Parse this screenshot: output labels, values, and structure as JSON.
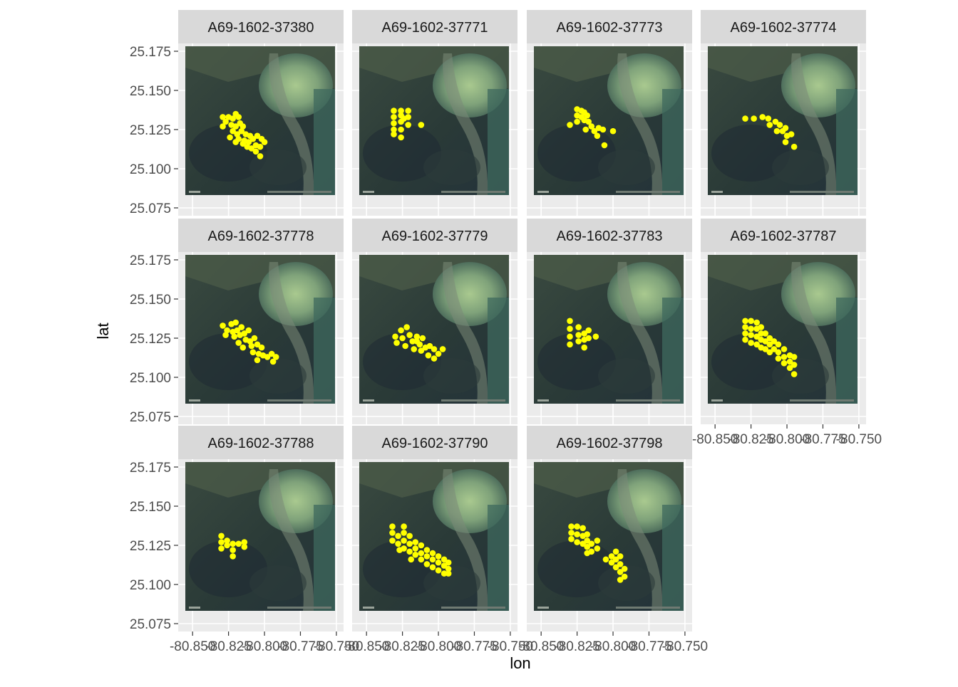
{
  "chart_data": {
    "type": "scatter",
    "subtype": "faceted-map",
    "xlabel": "lon",
    "ylabel": "lat",
    "xlim": [
      -80.86,
      -80.745
    ],
    "ylim": [
      25.07,
      25.18
    ],
    "x_ticks": [
      -80.85,
      -80.825,
      -80.8,
      -80.775,
      -80.75
    ],
    "x_tick_labels": [
      "-80.850",
      "-80.825",
      "-80.800",
      "-80.775",
      "-80.750"
    ],
    "y_ticks": [
      25.075,
      25.1,
      25.125,
      25.15,
      25.175
    ],
    "y_tick_labels": [
      "25.075",
      "25.100",
      "25.125",
      "25.150",
      "25.175"
    ],
    "point_color": "#ffff00",
    "panel_background": "#ebebeb",
    "strip_background": "#d9d9d9",
    "grid": true,
    "background_layer": "satellite imagery",
    "panels": [
      {
        "label": "A69-1602-37380",
        "points": [
          [
            -80.829,
            25.133
          ],
          [
            -80.827,
            25.13
          ],
          [
            -80.829,
            25.127
          ],
          [
            -80.825,
            25.133
          ],
          [
            -80.822,
            25.132
          ],
          [
            -80.82,
            25.135
          ],
          [
            -80.818,
            25.133
          ],
          [
            -80.823,
            25.128
          ],
          [
            -80.82,
            25.127
          ],
          [
            -80.817,
            25.129
          ],
          [
            -80.815,
            25.127
          ],
          [
            -80.822,
            25.124
          ],
          [
            -80.819,
            25.122
          ],
          [
            -80.816,
            25.124
          ],
          [
            -80.813,
            25.122
          ],
          [
            -80.81,
            25.121
          ],
          [
            -80.824,
            25.12
          ],
          [
            -80.818,
            25.119
          ],
          [
            -80.814,
            25.118
          ],
          [
            -80.811,
            25.117
          ],
          [
            -80.808,
            25.119
          ],
          [
            -80.805,
            25.121
          ],
          [
            -80.802,
            25.119
          ],
          [
            -80.812,
            25.114
          ],
          [
            -80.809,
            25.113
          ],
          [
            -80.806,
            25.115
          ],
          [
            -80.803,
            25.114
          ],
          [
            -80.8,
            25.117
          ],
          [
            -80.806,
            25.111
          ],
          [
            -80.803,
            25.108
          ],
          [
            -80.815,
            25.116
          ],
          [
            -80.82,
            25.117
          ]
        ]
      },
      {
        "label": "A69-1602-37771",
        "points": [
          [
            -80.831,
            25.137
          ],
          [
            -80.831,
            25.133
          ],
          [
            -80.831,
            25.129
          ],
          [
            -80.831,
            25.125
          ],
          [
            -80.831,
            25.122
          ],
          [
            -80.826,
            25.137
          ],
          [
            -80.826,
            25.134
          ],
          [
            -80.826,
            25.13
          ],
          [
            -80.826,
            25.125
          ],
          [
            -80.826,
            25.12
          ],
          [
            -80.821,
            25.137
          ],
          [
            -80.821,
            25.133
          ],
          [
            -80.821,
            25.128
          ],
          [
            -80.812,
            25.128
          ],
          [
            -80.824,
            25.132
          ]
        ]
      },
      {
        "label": "A69-1602-37773",
        "points": [
          [
            -80.83,
            25.128
          ],
          [
            -80.825,
            25.138
          ],
          [
            -80.825,
            25.134
          ],
          [
            -80.825,
            25.13
          ],
          [
            -80.822,
            25.137
          ],
          [
            -80.822,
            25.133
          ],
          [
            -80.82,
            25.136
          ],
          [
            -80.82,
            25.131
          ],
          [
            -80.818,
            25.134
          ],
          [
            -80.817,
            25.13
          ],
          [
            -80.815,
            25.127
          ],
          [
            -80.819,
            25.125
          ],
          [
            -80.813,
            25.124
          ],
          [
            -80.81,
            25.126
          ],
          [
            -80.811,
            25.121
          ],
          [
            -80.807,
            25.125
          ],
          [
            -80.8,
            25.124
          ],
          [
            -80.806,
            25.115
          ]
        ]
      },
      {
        "label": "A69-1602-37774",
        "points": [
          [
            -80.829,
            25.132
          ],
          [
            -80.823,
            25.132
          ],
          [
            -80.817,
            25.133
          ],
          [
            -80.813,
            25.132
          ],
          [
            -80.812,
            25.128
          ],
          [
            -80.808,
            25.13
          ],
          [
            -80.805,
            25.128
          ],
          [
            -80.807,
            25.124
          ],
          [
            -80.803,
            25.124
          ],
          [
            -80.801,
            25.126
          ],
          [
            -80.8,
            25.121
          ],
          [
            -80.801,
            25.117
          ],
          [
            -80.797,
            25.122
          ],
          [
            -80.795,
            25.114
          ]
        ]
      },
      {
        "label": "A69-1602-37778",
        "points": [
          [
            -80.829,
            25.133
          ],
          [
            -80.826,
            25.13
          ],
          [
            -80.827,
            25.127
          ],
          [
            -80.823,
            25.134
          ],
          [
            -80.82,
            25.135
          ],
          [
            -80.822,
            25.129
          ],
          [
            -80.819,
            25.13
          ],
          [
            -80.816,
            25.132
          ],
          [
            -80.817,
            25.127
          ],
          [
            -80.814,
            25.128
          ],
          [
            -80.811,
            25.13
          ],
          [
            -80.813,
            25.124
          ],
          [
            -80.81,
            25.123
          ],
          [
            -80.807,
            25.125
          ],
          [
            -80.809,
            25.12
          ],
          [
            -80.805,
            25.121
          ],
          [
            -80.802,
            25.119
          ],
          [
            -80.808,
            25.116
          ],
          [
            -80.804,
            25.115
          ],
          [
            -80.801,
            25.114
          ],
          [
            -80.805,
            25.111
          ],
          [
            -80.798,
            25.113
          ],
          [
            -80.795,
            25.115
          ],
          [
            -80.792,
            25.113
          ],
          [
            -80.794,
            25.11
          ],
          [
            -80.818,
            25.122
          ],
          [
            -80.815,
            25.119
          ],
          [
            -80.821,
            25.126
          ]
        ]
      },
      {
        "label": "A69-1602-37779",
        "points": [
          [
            -80.83,
            25.126
          ],
          [
            -80.826,
            25.13
          ],
          [
            -80.829,
            25.122
          ],
          [
            -80.825,
            25.125
          ],
          [
            -80.822,
            25.132
          ],
          [
            -80.82,
            25.127
          ],
          [
            -80.823,
            25.12
          ],
          [
            -80.818,
            25.123
          ],
          [
            -80.815,
            25.126
          ],
          [
            -80.813,
            25.121
          ],
          [
            -80.811,
            25.125
          ],
          [
            -80.817,
            25.118
          ],
          [
            -80.812,
            25.117
          ],
          [
            -80.809,
            25.119
          ],
          [
            -80.806,
            25.12
          ],
          [
            -80.803,
            25.118
          ],
          [
            -80.807,
            25.114
          ],
          [
            -80.803,
            25.112
          ],
          [
            -80.8,
            25.115
          ],
          [
            -80.797,
            25.118
          ],
          [
            -80.815,
            25.123
          ]
        ]
      },
      {
        "label": "A69-1602-37783",
        "points": [
          [
            -80.83,
            25.136
          ],
          [
            -80.83,
            25.131
          ],
          [
            -80.83,
            25.126
          ],
          [
            -80.83,
            25.121
          ],
          [
            -80.824,
            25.132
          ],
          [
            -80.824,
            25.127
          ],
          [
            -80.824,
            25.123
          ],
          [
            -80.82,
            25.128
          ],
          [
            -80.82,
            25.124
          ],
          [
            -80.82,
            25.119
          ],
          [
            -80.817,
            25.13
          ],
          [
            -80.817,
            25.125
          ],
          [
            -80.812,
            25.126
          ]
        ]
      },
      {
        "label": "A69-1602-37787",
        "points": [
          [
            -80.829,
            25.136
          ],
          [
            -80.829,
            25.132
          ],
          [
            -80.829,
            25.128
          ],
          [
            -80.829,
            25.124
          ],
          [
            -80.825,
            25.136
          ],
          [
            -80.825,
            25.131
          ],
          [
            -80.825,
            25.127
          ],
          [
            -80.825,
            25.122
          ],
          [
            -80.821,
            25.135
          ],
          [
            -80.821,
            25.131
          ],
          [
            -80.821,
            25.126
          ],
          [
            -80.821,
            25.121
          ],
          [
            -80.818,
            25.132
          ],
          [
            -80.818,
            25.128
          ],
          [
            -80.818,
            25.124
          ],
          [
            -80.818,
            25.119
          ],
          [
            -80.815,
            25.128
          ],
          [
            -80.815,
            25.123
          ],
          [
            -80.815,
            25.118
          ],
          [
            -80.812,
            25.125
          ],
          [
            -80.812,
            25.121
          ],
          [
            -80.812,
            25.116
          ],
          [
            -80.809,
            25.123
          ],
          [
            -80.809,
            25.118
          ],
          [
            -80.806,
            25.121
          ],
          [
            -80.806,
            25.116
          ],
          [
            -80.806,
            25.112
          ],
          [
            -80.802,
            25.118
          ],
          [
            -80.802,
            25.113
          ],
          [
            -80.802,
            25.109
          ],
          [
            -80.798,
            25.114
          ],
          [
            -80.798,
            25.11
          ],
          [
            -80.798,
            25.106
          ],
          [
            -80.795,
            25.113
          ],
          [
            -80.795,
            25.108
          ],
          [
            -80.795,
            25.102
          ]
        ]
      },
      {
        "label": "A69-1602-37788",
        "points": [
          [
            -80.83,
            25.131
          ],
          [
            -80.83,
            25.127
          ],
          [
            -80.83,
            25.123
          ],
          [
            -80.826,
            25.128
          ],
          [
            -80.826,
            25.125
          ],
          [
            -80.822,
            25.126
          ],
          [
            -80.822,
            25.122
          ],
          [
            -80.822,
            25.118
          ],
          [
            -80.818,
            25.126
          ],
          [
            -80.814,
            25.127
          ],
          [
            -80.814,
            25.124
          ]
        ]
      },
      {
        "label": "A69-1602-37790",
        "points": [
          [
            -80.832,
            25.137
          ],
          [
            -80.832,
            25.133
          ],
          [
            -80.832,
            25.128
          ],
          [
            -80.828,
            25.131
          ],
          [
            -80.828,
            25.126
          ],
          [
            -80.824,
            25.137
          ],
          [
            -80.824,
            25.133
          ],
          [
            -80.824,
            25.128
          ],
          [
            -80.824,
            25.123
          ],
          [
            -80.82,
            25.131
          ],
          [
            -80.82,
            25.126
          ],
          [
            -80.82,
            25.121
          ],
          [
            -80.816,
            25.127
          ],
          [
            -80.816,
            25.123
          ],
          [
            -80.816,
            25.119
          ],
          [
            -80.812,
            25.125
          ],
          [
            -80.812,
            25.12
          ],
          [
            -80.812,
            25.116
          ],
          [
            -80.808,
            25.122
          ],
          [
            -80.808,
            25.118
          ],
          [
            -80.808,
            25.113
          ],
          [
            -80.804,
            25.12
          ],
          [
            -80.804,
            25.116
          ],
          [
            -80.804,
            25.111
          ],
          [
            -80.8,
            25.118
          ],
          [
            -80.8,
            25.114
          ],
          [
            -80.8,
            25.109
          ],
          [
            -80.796,
            25.116
          ],
          [
            -80.796,
            25.112
          ],
          [
            -80.796,
            25.107
          ],
          [
            -80.793,
            25.114
          ],
          [
            -80.793,
            25.11
          ],
          [
            -80.793,
            25.107
          ],
          [
            -80.827,
            25.122
          ],
          [
            -80.819,
            25.116
          ]
        ]
      },
      {
        "label": "A69-1602-37798",
        "points": [
          [
            -80.829,
            25.137
          ],
          [
            -80.829,
            25.133
          ],
          [
            -80.829,
            25.129
          ],
          [
            -80.825,
            25.137
          ],
          [
            -80.825,
            25.132
          ],
          [
            -80.825,
            25.127
          ],
          [
            -80.821,
            25.136
          ],
          [
            -80.821,
            25.131
          ],
          [
            -80.821,
            25.126
          ],
          [
            -80.818,
            25.132
          ],
          [
            -80.818,
            25.128
          ],
          [
            -80.818,
            25.124
          ],
          [
            -80.818,
            25.12
          ],
          [
            -80.815,
            25.126
          ],
          [
            -80.815,
            25.121
          ],
          [
            -80.811,
            25.128
          ],
          [
            -80.811,
            25.123
          ],
          [
            -80.805,
            25.116
          ],
          [
            -80.801,
            25.118
          ],
          [
            -80.801,
            25.114
          ],
          [
            -80.798,
            25.121
          ],
          [
            -80.798,
            25.116
          ],
          [
            -80.798,
            25.111
          ],
          [
            -80.795,
            25.118
          ],
          [
            -80.795,
            25.113
          ],
          [
            -80.795,
            25.108
          ],
          [
            -80.795,
            25.103
          ],
          [
            -80.792,
            25.11
          ],
          [
            -80.792,
            25.105
          ]
        ]
      }
    ]
  }
}
